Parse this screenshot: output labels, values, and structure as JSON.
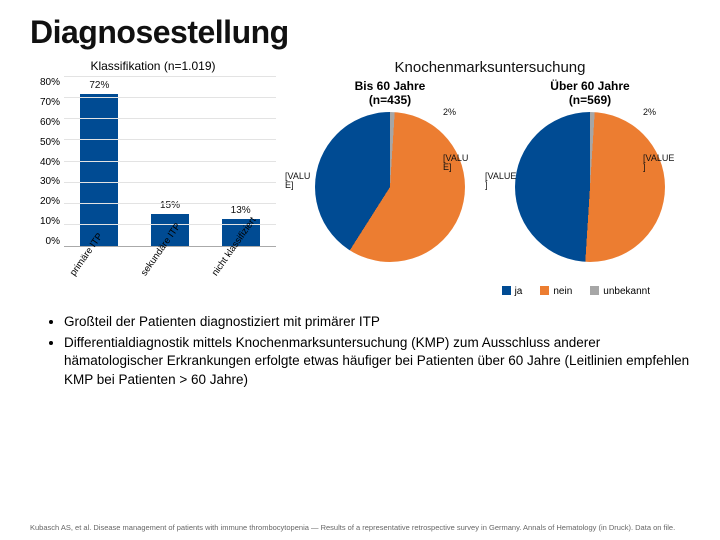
{
  "title": "Diagnosestellung",
  "bar_chart": {
    "title": "Klassifikation (n=1.019)",
    "type": "bar",
    "ylim": [
      0,
      80
    ],
    "ytick_step": 10,
    "categories": [
      "primäre ITP",
      "sekundäre ITP",
      "nicht klassifiziert"
    ],
    "values": [
      72,
      15,
      13
    ],
    "value_labels": [
      "72%",
      "15%",
      "13%"
    ],
    "bar_color": "#004b93",
    "grid_color": "#e3e3e3",
    "background_color": "#ffffff",
    "label_fontsize": 9.5
  },
  "pies": {
    "heading": "Knochenmarksuntersuchung",
    "colors": {
      "ja": "#004b93",
      "nein": "#ec7d31",
      "unbekannt": "#a6a6a6"
    },
    "left": {
      "title_l1": "Bis 60 Jahre",
      "title_l2": "(n=435)",
      "slices": {
        "ja": 40,
        "nein": 58,
        "unbekannt": 2
      },
      "labels": {
        "ja": "[VALU\nE]",
        "nein": "[VALU\nE]",
        "unbekannt": "2%"
      }
    },
    "right": {
      "title_l1": "Über 60 Jahre",
      "title_l2": "(n=569)",
      "slices": {
        "ja": 48,
        "nein": 50,
        "unbekannt": 2
      },
      "labels": {
        "ja": "[VALUE\n]",
        "nein": "[VALUE\n]",
        "unbekannt": "2%"
      }
    },
    "legend": [
      {
        "key": "ja",
        "label": "ja"
      },
      {
        "key": "nein",
        "label": "nein"
      },
      {
        "key": "unbekannt",
        "label": "unbekannt"
      }
    ]
  },
  "bullets": [
    "Großteil der Patienten diagnostiziert mit primärer ITP",
    "Differentialdiagnostik mittels Knochenmarksuntersuchung (KMP) zum Ausschluss anderer hämatologischer Erkrankungen erfolgte etwas häufiger bei Patienten über 60 Jahre (Leitlinien empfehlen KMP bei Patienten > 60 Jahre)"
  ],
  "citation": "Kubasch AS, et al. Disease management of patients with immune thrombocytopenia — Results of a representative retrospective survey in Germany. Annals of Hematology (in Druck).\nData on file."
}
